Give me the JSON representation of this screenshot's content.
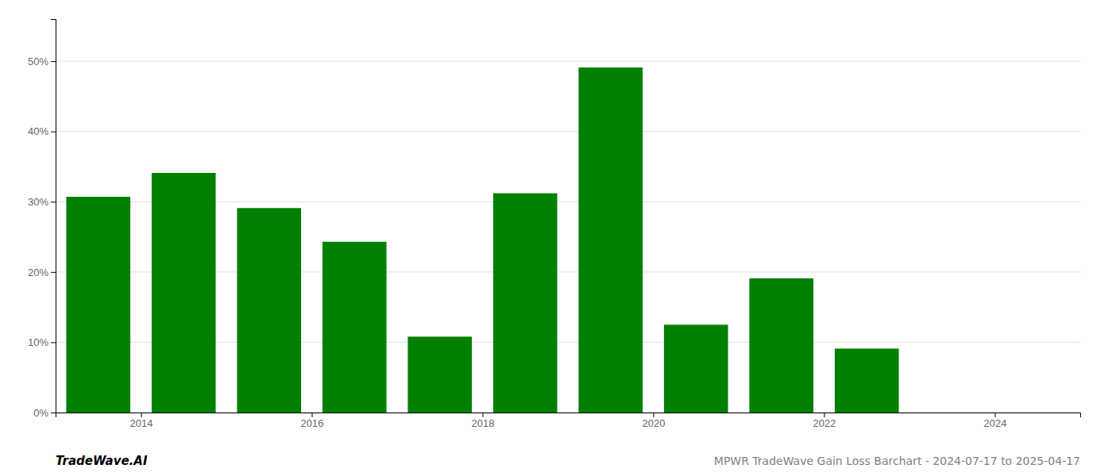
{
  "chart_data": {
    "type": "bar",
    "title": "MPWR TradeWave Gain Loss Barchart - 2024-07-17 to 2025-04-17",
    "annotations": [
      "TradeWave.AI"
    ],
    "x": [
      2013.5,
      2014.5,
      2015.5,
      2016.5,
      2017.5,
      2018.5,
      2019.5,
      2020.5,
      2021.5,
      2022.5
    ],
    "values": [
      0.307,
      0.341,
      0.291,
      0.243,
      0.108,
      0.312,
      0.491,
      0.125,
      0.191,
      0.091
    ],
    "color": "#008000",
    "xlim": [
      2013.0,
      2025.0
    ],
    "xticks": [
      2014,
      2016,
      2018,
      2020,
      2022,
      2024
    ],
    "ylim": [
      0,
      0.56
    ],
    "yticks": [
      {
        "value": 0.0,
        "label": "0%"
      },
      {
        "value": 0.1,
        "label": "10%"
      },
      {
        "value": 0.2,
        "label": "20%"
      },
      {
        "value": 0.3,
        "label": "30%"
      },
      {
        "value": 0.4,
        "label": "40%"
      },
      {
        "value": 0.5,
        "label": "50%"
      }
    ],
    "grid": true
  }
}
